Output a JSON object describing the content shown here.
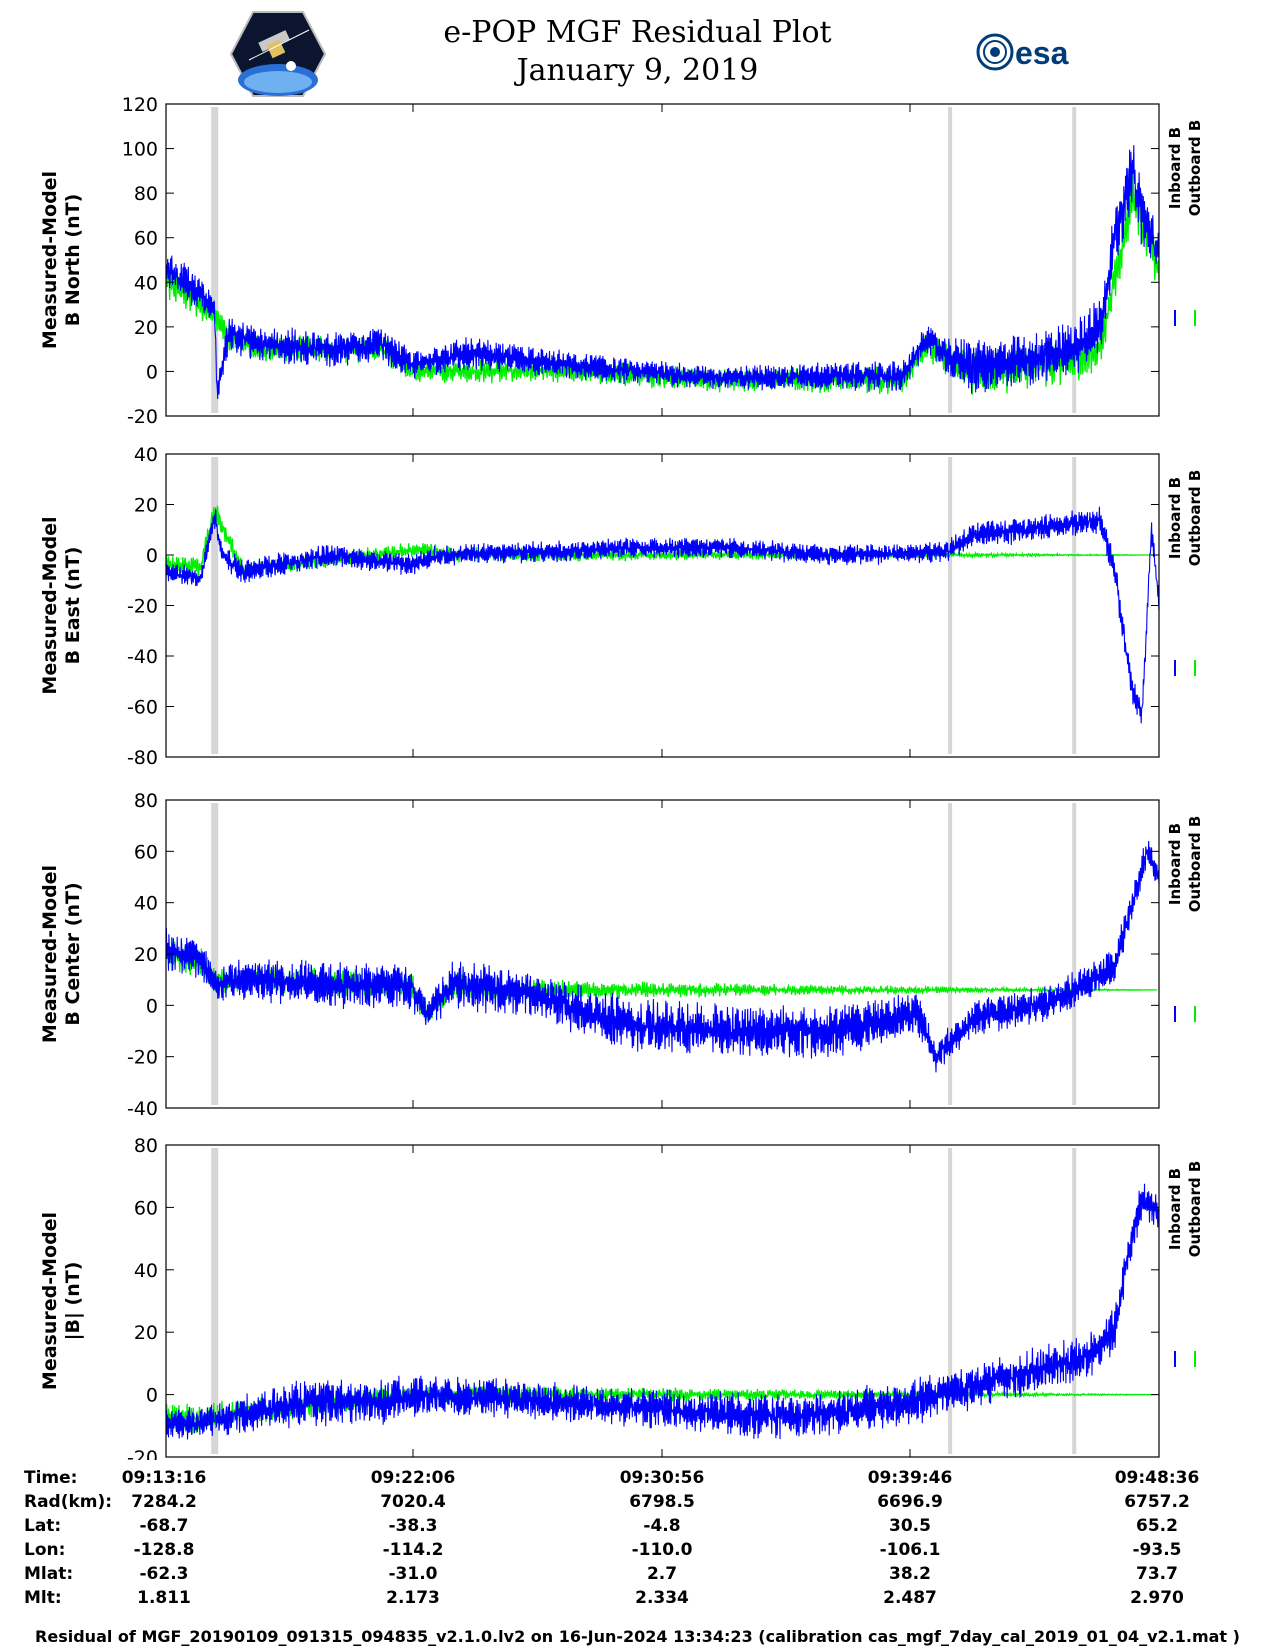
{
  "header": {
    "title_line1": "e-POP MGF Residual Plot",
    "title_line2": "January 9, 2019",
    "logo_left": "cassiope-mission-logo",
    "logo_right_text": "esa"
  },
  "legend": {
    "inboard": "Inboard B",
    "outboard": "Outboard B"
  },
  "colors": {
    "inboard": "#0000ff",
    "outboard": "#00ee00",
    "gap_band": "#d6d6d6"
  },
  "chart_data": [
    {
      "type": "line",
      "ylabel": [
        "Measured-Model",
        "B North (nT)"
      ],
      "ylim": [
        -20,
        120
      ],
      "yticks": [
        -20,
        0,
        20,
        40,
        60,
        80,
        100,
        120
      ],
      "xlim": [
        "09:13:16",
        "09:48:36"
      ],
      "grid": false,
      "gap_bands_time": [
        "09:15:00",
        "09:41:10",
        "09:45:35"
      ],
      "series": [
        {
          "name": "Inboard B",
          "color": "#0000ff",
          "t": [
            "09:13:16",
            "09:14:00",
            "09:15:00",
            "09:15:05",
            "09:15:30",
            "09:16:30",
            "09:19:00",
            "09:21:00",
            "09:22:00",
            "09:24:00",
            "09:28:00",
            "09:33:00",
            "09:37:00",
            "09:39:30",
            "09:40:20",
            "09:41:10",
            "09:42:00",
            "09:44:00",
            "09:45:30",
            "09:46:30",
            "09:47:00",
            "09:47:40",
            "09:48:00",
            "09:48:36"
          ],
          "v": [
            45,
            40,
            28,
            -10,
            18,
            12,
            10,
            12,
            3,
            8,
            2,
            -3,
            -2,
            -2,
            15,
            6,
            2,
            5,
            10,
            20,
            58,
            90,
            70,
            52
          ],
          "noise": [
            8,
            8,
            6,
            4,
            8,
            8,
            8,
            8,
            6,
            7,
            6,
            5,
            6,
            7,
            6,
            9,
            12,
            11,
            12,
            12,
            14,
            14,
            14,
            10
          ]
        },
        {
          "name": "Outboard B",
          "color": "#00ee00",
          "t": [
            "09:13:16",
            "09:14:00",
            "09:15:00",
            "09:15:30",
            "09:16:30",
            "09:21:00",
            "09:22:00",
            "09:28:00",
            "09:33:00",
            "09:39:30",
            "09:40:20",
            "09:42:00",
            "09:45:30",
            "09:46:30",
            "09:47:40",
            "09:48:36"
          ],
          "v": [
            40,
            35,
            25,
            15,
            10,
            10,
            0,
            0,
            -4,
            -4,
            12,
            -2,
            5,
            10,
            80,
            45
          ],
          "noise": [
            8,
            8,
            6,
            6,
            6,
            6,
            5,
            5,
            5,
            6,
            6,
            10,
            10,
            10,
            12,
            10
          ]
        }
      ]
    },
    {
      "type": "line",
      "ylabel": [
        "Measured-Model",
        "B East (nT)"
      ],
      "ylim": [
        -80,
        40
      ],
      "yticks": [
        -80,
        -60,
        -40,
        -20,
        0,
        20,
        40
      ],
      "xlim": [
        "09:13:16",
        "09:48:36"
      ],
      "grid": false,
      "gap_bands_time": [
        "09:15:00",
        "09:41:10",
        "09:45:35"
      ],
      "series": [
        {
          "name": "Inboard B",
          "color": "#0000ff",
          "t": [
            "09:13:16",
            "09:14:30",
            "09:15:00",
            "09:15:15",
            "09:16:00",
            "09:19:00",
            "09:22:00",
            "09:23:00",
            "09:26:00",
            "09:30:00",
            "09:33:00",
            "09:37:00",
            "09:41:00",
            "09:42:00",
            "09:44:00",
            "09:46:30",
            "09:47:00",
            "09:47:40",
            "09:48:00",
            "09:48:20",
            "09:48:36"
          ],
          "v": [
            -7,
            -9,
            15,
            0,
            -7,
            0,
            -4,
            0,
            1,
            3,
            3,
            0,
            1,
            8,
            10,
            14,
            -5,
            -55,
            -62,
            10,
            -20
          ],
          "noise": [
            4,
            4,
            5,
            4,
            5,
            4,
            4,
            4,
            4,
            4,
            4,
            4,
            4,
            5,
            5,
            5,
            6,
            6,
            5,
            6,
            5
          ]
        },
        {
          "name": "Outboard B",
          "color": "#00ee00",
          "t": [
            "09:13:16",
            "09:14:30",
            "09:15:00",
            "09:16:00",
            "09:22:00",
            "09:22:30",
            "09:23:30",
            "09:48:36"
          ],
          "v": [
            -3,
            -5,
            18,
            -6,
            2,
            2,
            0,
            0
          ],
          "noise": [
            4,
            4,
            5,
            3,
            3,
            3,
            3,
            0
          ]
        }
      ]
    },
    {
      "type": "line",
      "ylabel": [
        "Measured-Model",
        "B Center (nT)"
      ],
      "ylim": [
        -40,
        80
      ],
      "yticks": [
        -40,
        -20,
        0,
        20,
        40,
        60,
        80
      ],
      "xlim": [
        "09:13:16",
        "09:48:36"
      ],
      "grid": false,
      "gap_bands_time": [
        "09:15:00",
        "09:41:10",
        "09:45:35"
      ],
      "series": [
        {
          "name": "Inboard B",
          "color": "#0000ff",
          "t": [
            "09:13:16",
            "09:14:30",
            "09:15:00",
            "09:16:00",
            "09:20:00",
            "09:22:00",
            "09:22:30",
            "09:23:30",
            "09:26:00",
            "09:30:00",
            "09:33:00",
            "09:37:00",
            "09:40:00",
            "09:40:40",
            "09:42:00",
            "09:45:00",
            "09:47:00",
            "09:47:40",
            "09:48:10",
            "09:48:36"
          ],
          "v": [
            22,
            18,
            8,
            10,
            8,
            8,
            -3,
            8,
            5,
            -8,
            -10,
            -10,
            -3,
            -20,
            -5,
            2,
            15,
            40,
            60,
            50
          ],
          "noise": [
            8,
            8,
            6,
            8,
            9,
            9,
            6,
            9,
            9,
            10,
            10,
            10,
            8,
            6,
            7,
            7,
            7,
            6,
            6,
            5
          ]
        },
        {
          "name": "Outboard B",
          "color": "#00ee00",
          "t": [
            "09:13:16",
            "09:14:30",
            "09:15:00",
            "09:16:00",
            "09:22:00",
            "09:22:30",
            "09:23:30",
            "09:25:00",
            "09:48:36"
          ],
          "v": [
            20,
            16,
            10,
            10,
            8,
            -3,
            8,
            6,
            6
          ],
          "noise": [
            6,
            6,
            5,
            5,
            5,
            5,
            5,
            4,
            0
          ]
        }
      ]
    },
    {
      "type": "line",
      "ylabel": [
        "Measured-Model",
        "|B| (nT)"
      ],
      "ylim": [
        -20,
        80
      ],
      "yticks": [
        -20,
        0,
        20,
        40,
        60,
        80
      ],
      "xlim": [
        "09:13:16",
        "09:48:36"
      ],
      "grid": false,
      "gap_bands_time": [
        "09:15:00",
        "09:41:10",
        "09:45:35"
      ],
      "series": [
        {
          "name": "Inboard B",
          "color": "#0000ff",
          "t": [
            "09:13:16",
            "09:14:30",
            "09:15:30",
            "09:18:00",
            "09:21:00",
            "09:22:30",
            "09:25:00",
            "09:30:00",
            "09:34:00",
            "09:37:00",
            "09:40:00",
            "09:43:00",
            "09:46:00",
            "09:47:00",
            "09:47:30",
            "09:48:00",
            "09:48:36"
          ],
          "v": [
            -9,
            -9,
            -7,
            -3,
            -2,
            0,
            -1,
            -4,
            -7,
            -6,
            -2,
            5,
            12,
            20,
            45,
            63,
            58
          ],
          "noise": [
            5,
            5,
            6,
            7,
            7,
            6,
            6,
            6,
            7,
            7,
            7,
            7,
            7,
            7,
            6,
            6,
            5
          ]
        },
        {
          "name": "Outboard B",
          "color": "#00ee00",
          "t": [
            "09:13:16",
            "09:14:30",
            "09:15:30",
            "09:22:30",
            "09:23:30",
            "09:48:36"
          ],
          "v": [
            -8,
            -8,
            -6,
            0,
            0,
            0
          ],
          "noise": [
            5,
            5,
            4,
            3,
            3,
            0
          ]
        }
      ]
    }
  ],
  "ephemeris": {
    "labels": [
      "Time:",
      "Rad(km):",
      "Lat:",
      "Lon:",
      "Mlat:",
      "Mlt:"
    ],
    "columns": [
      [
        "09:13:16",
        "7284.2",
        "-68.7",
        "-128.8",
        "-62.3",
        "1.811"
      ],
      [
        "09:22:06",
        "7020.4",
        "-38.3",
        "-114.2",
        "-31.0",
        "2.173"
      ],
      [
        "09:30:56",
        "6798.5",
        "-4.8",
        "-110.0",
        "2.7",
        "2.334"
      ],
      [
        "09:39:46",
        "6696.9",
        "30.5",
        "-106.1",
        "38.2",
        "2.487"
      ],
      [
        "09:48:36",
        "6757.2",
        "65.2",
        "-93.5",
        "73.7",
        "2.970"
      ]
    ]
  },
  "footer": "Residual of MGF_20190109_091315_094835_v2.1.0.lv2 on 16-Jun-2024 13:34:23 (calibration cas_mgf_7day_cal_2019_01_04_v2.1.mat )"
}
